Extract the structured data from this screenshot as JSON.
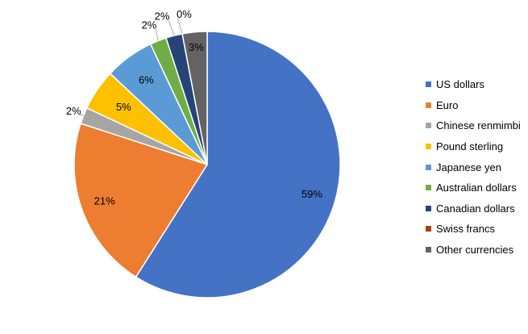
{
  "chart_data": {
    "type": "pie",
    "title": "",
    "legend_position": "right",
    "slices": [
      {
        "name": "US dollars",
        "value": 59,
        "label": "59%",
        "color": "#4472C4"
      },
      {
        "name": "Euro",
        "value": 21,
        "label": "21%",
        "color": "#ED7D31"
      },
      {
        "name": "Chinese renmimbi",
        "value": 2,
        "label": "2%",
        "color": "#A5A5A5"
      },
      {
        "name": "Pound sterling",
        "value": 5,
        "label": "5%",
        "color": "#FFC000"
      },
      {
        "name": "Japanese yen",
        "value": 6,
        "label": "6%",
        "color": "#5B9BD5"
      },
      {
        "name": "Australian dollars",
        "value": 2,
        "label": "2%",
        "color": "#70AD47"
      },
      {
        "name": "Canadian dollars",
        "value": 2,
        "label": "2%",
        "color": "#264478"
      },
      {
        "name": "Swiss francs",
        "value": 0,
        "label": "0%",
        "color": "#9E480E"
      },
      {
        "name": "Other currencies",
        "value": 3,
        "label": "3%",
        "color": "#636363"
      }
    ]
  }
}
